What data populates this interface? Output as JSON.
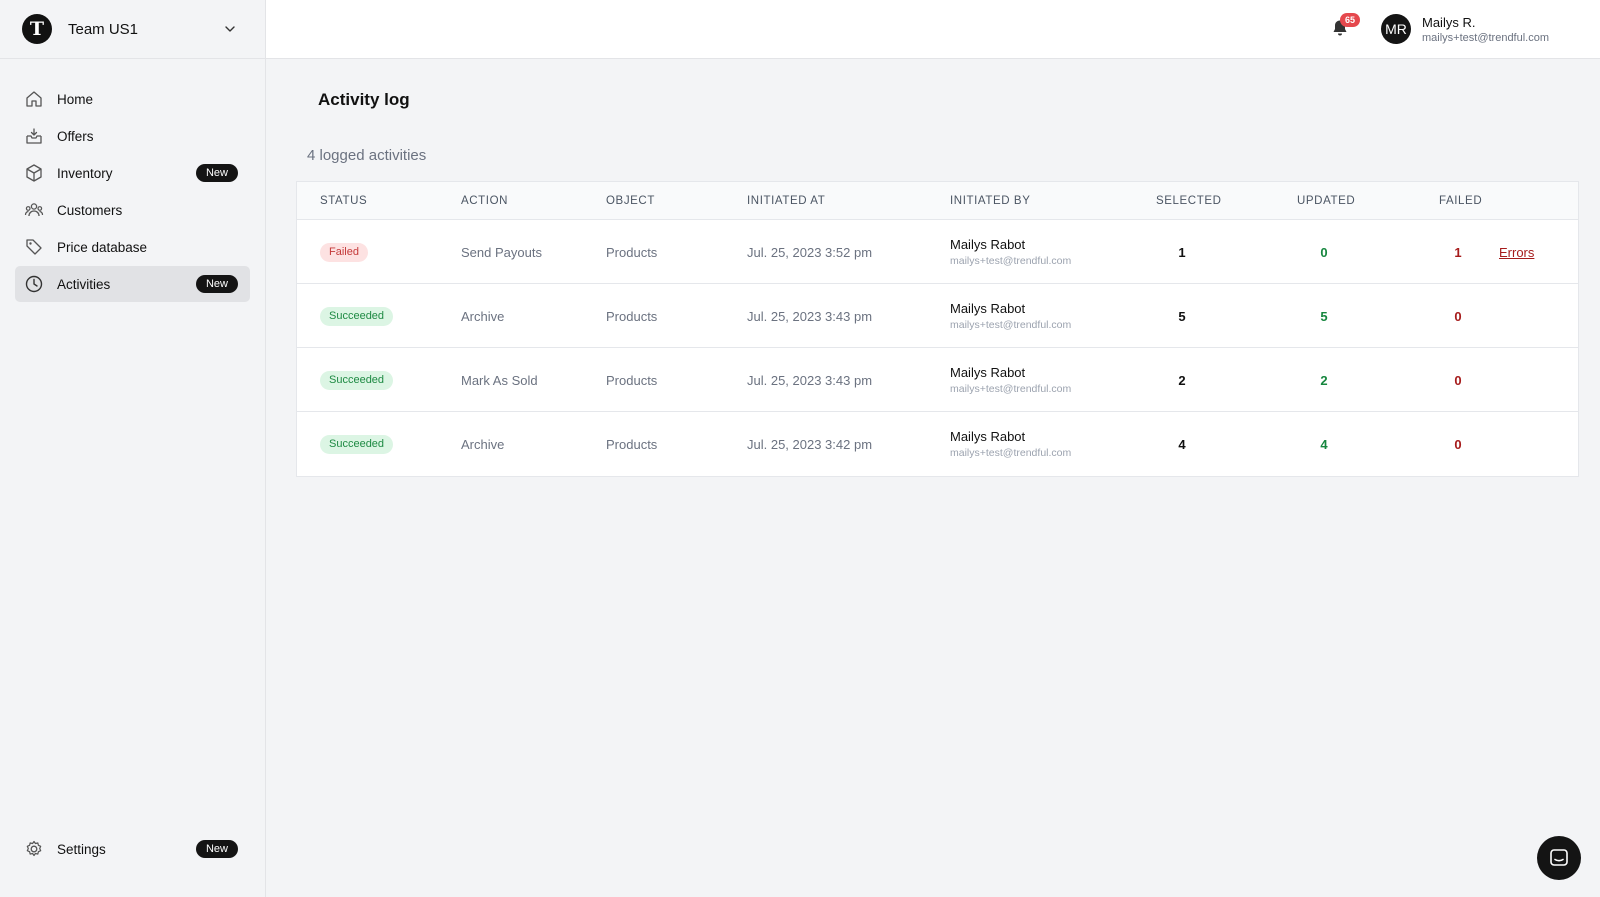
{
  "team": {
    "initial": "T",
    "name": "Team US1"
  },
  "nav": {
    "items": [
      {
        "label": "Home",
        "icon": "home-icon",
        "badge": ""
      },
      {
        "label": "Offers",
        "icon": "inbox-icon",
        "badge": ""
      },
      {
        "label": "Inventory",
        "icon": "box-icon",
        "badge": "New"
      },
      {
        "label": "Customers",
        "icon": "users-icon",
        "badge": ""
      },
      {
        "label": "Price database",
        "icon": "tag-icon",
        "badge": ""
      },
      {
        "label": "Activities",
        "icon": "clock-icon",
        "badge": "New",
        "active": true
      }
    ],
    "settings": {
      "label": "Settings",
      "icon": "gear-icon",
      "badge": "New"
    }
  },
  "header": {
    "notifications": "65",
    "user": {
      "initials": "MR",
      "name": "Mailys R.",
      "email": "mailys+test@trendful.com"
    }
  },
  "page": {
    "title": "Activity log",
    "count_text": "4 logged activities"
  },
  "table": {
    "columns": [
      "STATUS",
      "ACTION",
      "OBJECT",
      "INITIATED AT",
      "INITIATED BY",
      "SELECTED",
      "UPDATED",
      "FAILED"
    ],
    "rows": [
      {
        "status": "Failed",
        "status_type": "failed",
        "action": "Send Payouts",
        "object": "Products",
        "initiated_at": "Jul. 25, 2023 3:52 pm",
        "by_name": "Mailys Rabot",
        "by_email": "mailys+test@trendful.com",
        "selected": "1",
        "updated": "0",
        "failed": "1",
        "link": "Errors"
      },
      {
        "status": "Succeeded",
        "status_type": "succeeded",
        "action": "Archive",
        "object": "Products",
        "initiated_at": "Jul. 25, 2023 3:43 pm",
        "by_name": "Mailys Rabot",
        "by_email": "mailys+test@trendful.com",
        "selected": "5",
        "updated": "5",
        "failed": "0",
        "link": ""
      },
      {
        "status": "Succeeded",
        "status_type": "succeeded",
        "action": "Mark As Sold",
        "object": "Products",
        "initiated_at": "Jul. 25, 2023 3:43 pm",
        "by_name": "Mailys Rabot",
        "by_email": "mailys+test@trendful.com",
        "selected": "2",
        "updated": "2",
        "failed": "0",
        "link": ""
      },
      {
        "status": "Succeeded",
        "status_type": "succeeded",
        "action": "Archive",
        "object": "Products",
        "initiated_at": "Jul. 25, 2023 3:42 pm",
        "by_name": "Mailys Rabot",
        "by_email": "mailys+test@trendful.com",
        "selected": "4",
        "updated": "4",
        "failed": "0",
        "link": ""
      }
    ]
  },
  "colors": {
    "failed": "#a61b1b",
    "updated": "#16863e",
    "badge": "#141414",
    "notification": "#e5484d"
  }
}
